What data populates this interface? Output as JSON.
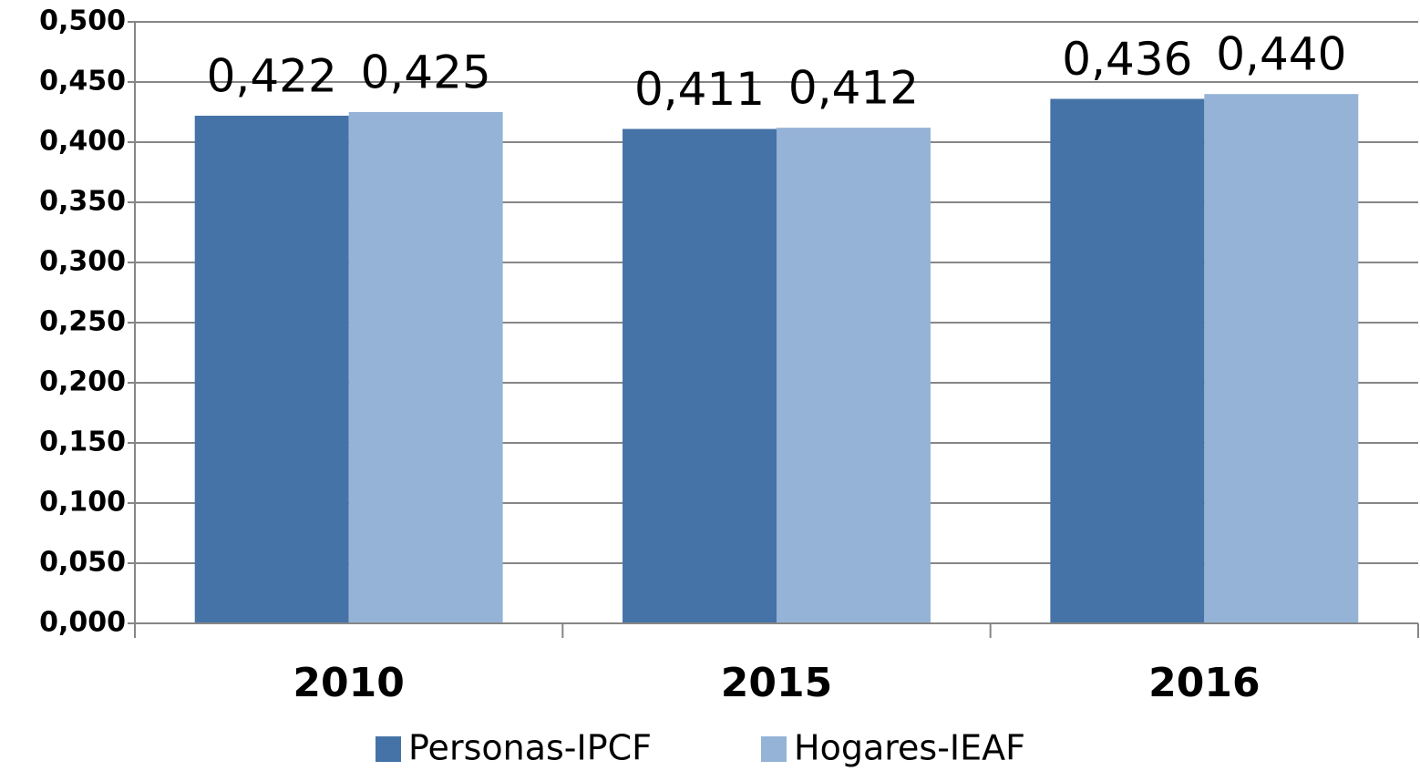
{
  "chart_data": {
    "type": "bar",
    "categories": [
      "2010",
      "2015",
      "2016"
    ],
    "series": [
      {
        "name": "Personas-IPCF",
        "color": "#4573a7",
        "values": [
          0.422,
          0.411,
          0.436
        ],
        "value_labels": [
          "0,422",
          "0,411",
          "0,436"
        ]
      },
      {
        "name": "Hogares-IEAF",
        "color": "#95b3d7",
        "values": [
          0.425,
          0.412,
          0.44
        ],
        "value_labels": [
          "0,425",
          "0,412",
          "0,440"
        ]
      }
    ],
    "ylim": [
      0,
      0.5
    ],
    "yticks": [
      {
        "value": 0,
        "label": "0,000"
      },
      {
        "value": 0.05,
        "label": "0,050"
      },
      {
        "value": 0.1,
        "label": "0,100"
      },
      {
        "value": 0.15,
        "label": "0,150"
      },
      {
        "value": 0.2,
        "label": "0,200"
      },
      {
        "value": 0.25,
        "label": "0,250"
      },
      {
        "value": 0.3,
        "label": "0,300"
      },
      {
        "value": 0.35,
        "label": "0,350"
      },
      {
        "value": 0.4,
        "label": "0,400"
      },
      {
        "value": 0.45,
        "label": "0,450"
      },
      {
        "value": 0.5,
        "label": "0,500"
      }
    ],
    "grid": true,
    "legend": "bottom"
  }
}
